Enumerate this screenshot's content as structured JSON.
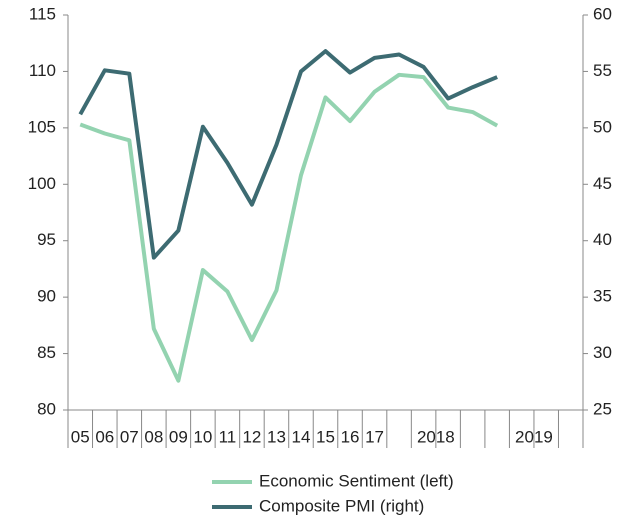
{
  "chart_data": {
    "type": "line",
    "categories": [
      "05",
      "06",
      "07",
      "08",
      "09",
      "10",
      "11",
      "12",
      "13",
      "14",
      "15",
      "16",
      "17",
      null,
      null,
      null,
      null,
      null,
      null,
      null,
      null
    ],
    "category_groups": [
      {
        "label": "2018",
        "start": 13,
        "span": 4
      },
      {
        "label": "2019",
        "start": 17,
        "span": 4
      }
    ],
    "series": [
      {
        "name": "Economic Sentiment (left)",
        "color": "#93d3b0",
        "axis": "y",
        "values": [
          105.3,
          104.5,
          103.9,
          87.2,
          82.6,
          92.4,
          90.5,
          86.2,
          90.6,
          100.8,
          107.7,
          105.6,
          108.2,
          109.7,
          109.5,
          106.8,
          106.4,
          105.2,
          null,
          null,
          null
        ]
      },
      {
        "name": "Composite PMI (right)",
        "color": "#3d6b72",
        "axis": "y2",
        "values": [
          51.2,
          55.1,
          54.8,
          38.5,
          40.9,
          50.1,
          46.9,
          43.2,
          48.5,
          55.0,
          56.8,
          54.9,
          56.2,
          56.5,
          55.4,
          52.6,
          53.6,
          54.5,
          null,
          null,
          null
        ]
      }
    ],
    "ylim": [
      80,
      115
    ],
    "yticks": [
      80,
      85,
      90,
      95,
      100,
      105,
      110,
      115
    ],
    "y2lim": [
      25,
      60
    ],
    "y2ticks": [
      25,
      30,
      35,
      40,
      45,
      50,
      55,
      60
    ],
    "legend": "bottom"
  }
}
